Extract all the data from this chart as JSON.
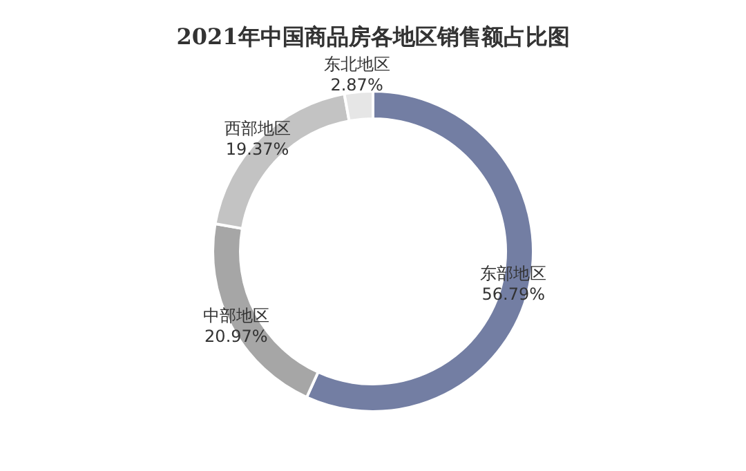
{
  "chart_data": {
    "type": "donut",
    "title": "2021年中国商品房各地区销售额占比图",
    "categories": [
      "东部地区",
      "中部地区",
      "西部地区",
      "东北地区"
    ],
    "values": [
      56.79,
      20.97,
      19.37,
      2.87
    ],
    "value_labels": [
      "56.79%",
      "20.97%",
      "19.37%",
      "2.87%"
    ],
    "colors": [
      "#737ea3",
      "#a6a6a6",
      "#c3c3c3",
      "#e6e6e6"
    ],
    "legend": false
  }
}
